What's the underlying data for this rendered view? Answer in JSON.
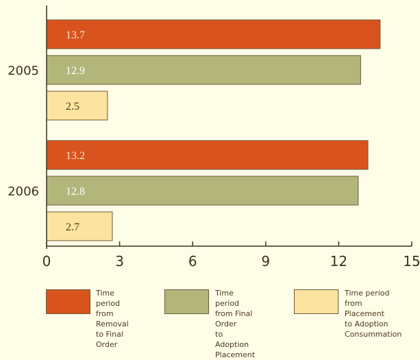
{
  "chart_data": {
    "type": "bar",
    "orientation": "horizontal",
    "categories": [
      "2005",
      "2006"
    ],
    "series": [
      {
        "name": "Time period from Removal to Final Order",
        "color": "#d9531e",
        "label_color": "#fbe7c8",
        "values": [
          13.7,
          13.2
        ],
        "labels": [
          "13.7",
          "13.2"
        ]
      },
      {
        "name": "Time period from Final Order to Adoption Placement",
        "color": "#b2b67a",
        "label_color": "#ffffff",
        "values": [
          12.9,
          12.8
        ],
        "labels": [
          "12.9",
          "12.8"
        ]
      },
      {
        "name": "Time period from Placement to Adoption Consummation",
        "color": "#fde3a0",
        "label_color": "#4a3b1c",
        "values": [
          2.5,
          2.7
        ],
        "labels": [
          "2.5",
          "2.7"
        ]
      }
    ],
    "xlim": [
      0,
      15
    ],
    "xticks": [
      0,
      3,
      6,
      9,
      12,
      15
    ],
    "xtick_labels": [
      "0",
      "3",
      "6",
      "9",
      "12",
      "15"
    ],
    "grid": false,
    "legend_position": "bottom"
  },
  "legend": [
    {
      "label": "Time period\nfrom Removal\nto Final Order",
      "color": "#d9531e"
    },
    {
      "label": "Time period\nfrom Final Order\nto Adoption\nPlacement",
      "color": "#b2b67a"
    },
    {
      "label": "Time period\nfrom Placement\nto Adoption\nConsummation",
      "color": "#fde3a0"
    }
  ]
}
